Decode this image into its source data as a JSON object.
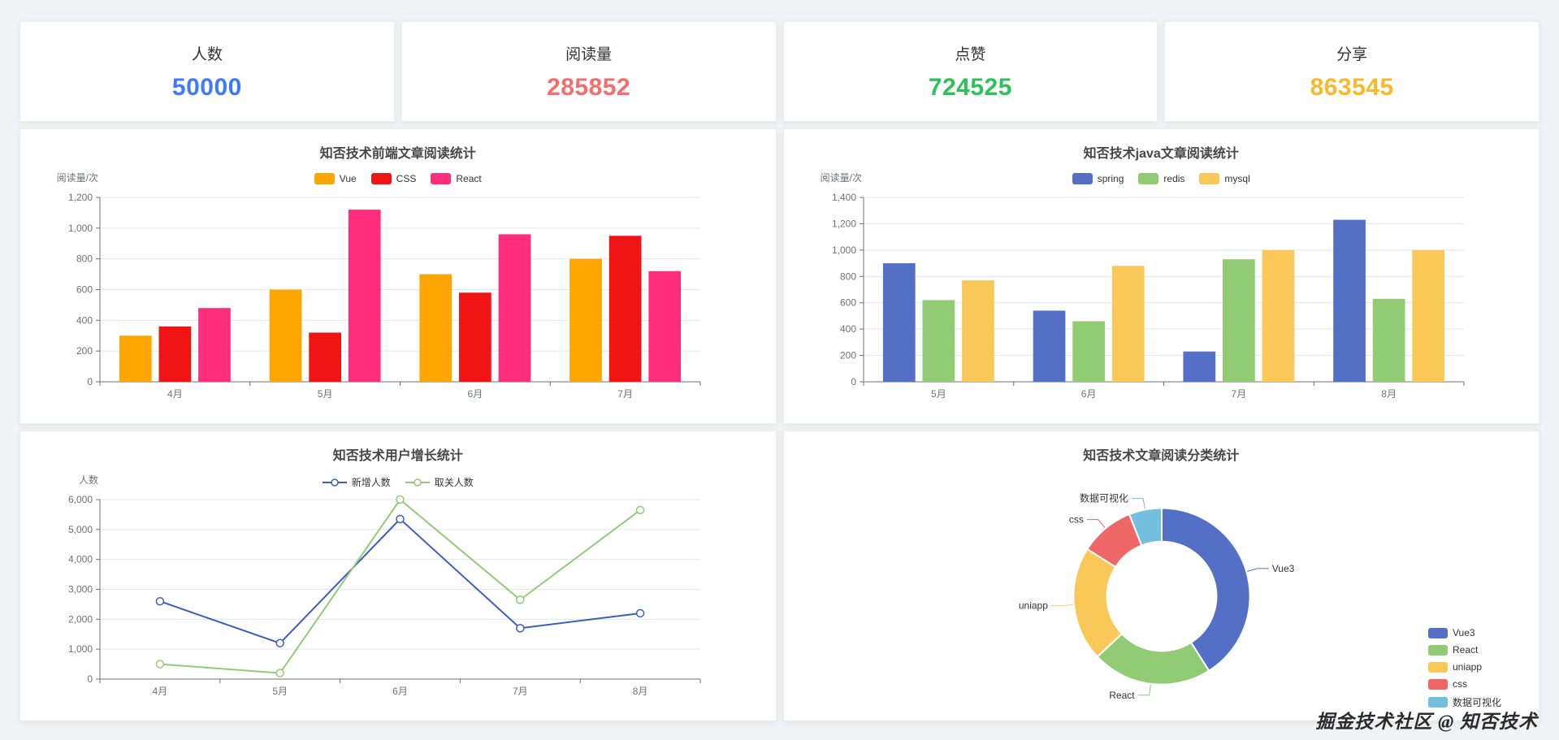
{
  "page": {
    "watermark": "掘金技术社区 @ 知否技术"
  },
  "stats": [
    {
      "label": "人数",
      "value": "50000",
      "color": "#3e7bfa"
    },
    {
      "label": "阅读量",
      "value": "285852",
      "color": "#f56c6c"
    },
    {
      "label": "点赞",
      "value": "724525",
      "color": "#2dc258"
    },
    {
      "label": "分享",
      "value": "863545",
      "color": "#f7ba2a"
    }
  ],
  "chart_data": [
    {
      "id": "frontend",
      "type": "bar",
      "title": "知否技术前端文章阅读统计",
      "ylabel": "阅读量/次",
      "categories": [
        "4月",
        "5月",
        "6月",
        "7月"
      ],
      "series": [
        {
          "name": "Vue",
          "color": "#ffa500",
          "values": [
            300,
            600,
            700,
            800
          ]
        },
        {
          "name": "CSS",
          "color": "#f01414",
          "values": [
            360,
            320,
            580,
            950
          ]
        },
        {
          "name": "React",
          "color": "#ff2d7c",
          "values": [
            480,
            1120,
            960,
            720
          ]
        }
      ],
      "ylim": [
        0,
        1200
      ],
      "ystep": 200,
      "grid": true,
      "legend_position": "top"
    },
    {
      "id": "java",
      "type": "bar",
      "title": "知否技术java文章阅读统计",
      "ylabel": "阅读量/次",
      "categories": [
        "5月",
        "6月",
        "7月",
        "8月"
      ],
      "series": [
        {
          "name": "spring",
          "color": "#5470c6",
          "values": [
            900,
            540,
            230,
            1230
          ]
        },
        {
          "name": "redis",
          "color": "#91cc75",
          "values": [
            620,
            460,
            930,
            630
          ]
        },
        {
          "name": "mysql",
          "color": "#fac858",
          "values": [
            770,
            880,
            1000,
            1000
          ]
        }
      ],
      "ylim": [
        0,
        1400
      ],
      "ystep": 200,
      "grid": true,
      "legend_position": "top"
    },
    {
      "id": "growth",
      "type": "line",
      "title": "知否技术用户增长统计",
      "ylabel": "人数",
      "categories": [
        "4月",
        "5月",
        "6月",
        "7月",
        "8月"
      ],
      "series": [
        {
          "name": "新增人数",
          "color": "#3a5ec4",
          "values": [
            2600,
            1200,
            5350,
            1700,
            2200
          ]
        },
        {
          "name": "取关人数",
          "color": "#91cc75",
          "values": [
            500,
            200,
            6000,
            2650,
            5650
          ]
        }
      ],
      "ylim": [
        0,
        6000
      ],
      "ystep": 1000,
      "grid": true,
      "legend_position": "top"
    },
    {
      "id": "category",
      "type": "pie",
      "title": "知否技术文章阅读分类统计",
      "slices": [
        {
          "name": "Vue3",
          "color": "#5470c6",
          "value": 41
        },
        {
          "name": "React",
          "color": "#91cc75",
          "value": 22
        },
        {
          "name": "uniapp",
          "color": "#fac858",
          "value": 21
        },
        {
          "name": "css",
          "color": "#ee6666",
          "value": 10
        },
        {
          "name": "数据可视化",
          "color": "#73c0de",
          "value": 6
        }
      ],
      "legend_position": "bottom-right"
    }
  ]
}
